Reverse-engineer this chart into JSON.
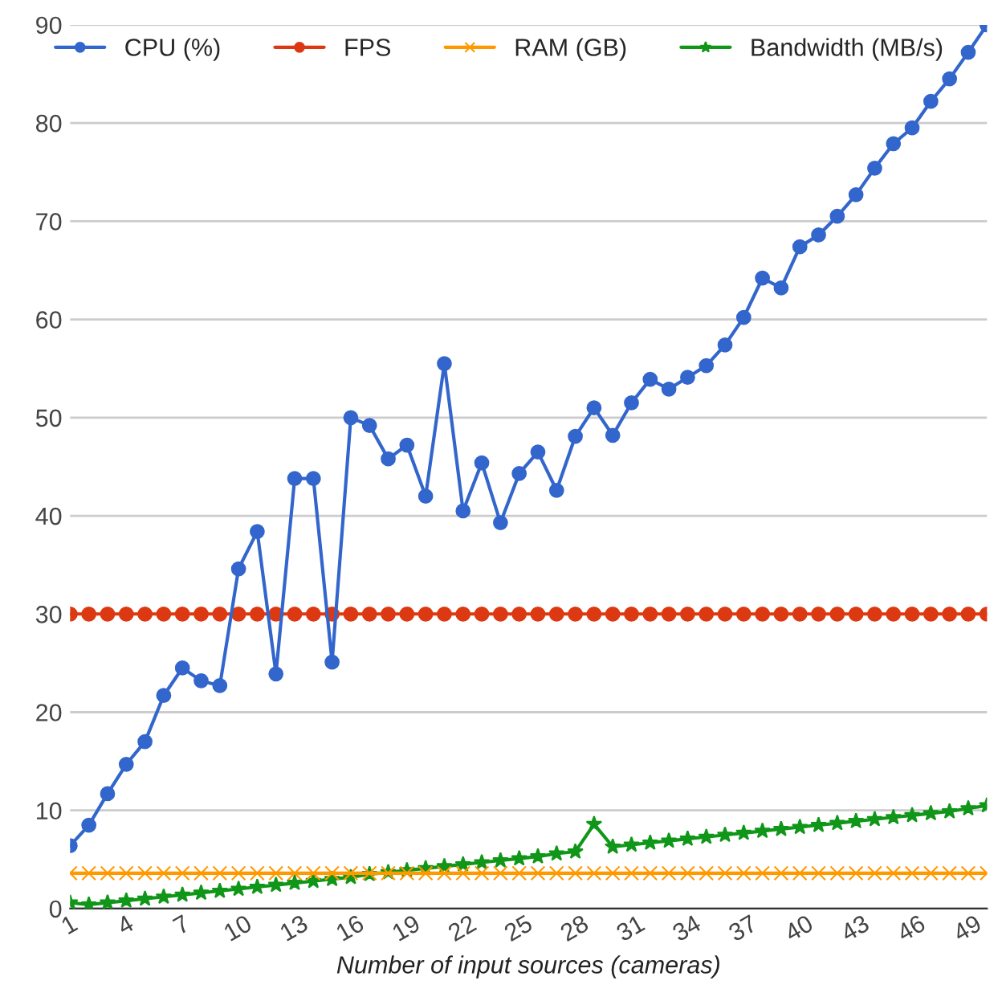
{
  "chart_data": {
    "type": "line",
    "xlabel": "Number of input sources (cameras)",
    "x": [
      1,
      2,
      3,
      4,
      5,
      6,
      7,
      8,
      9,
      10,
      11,
      12,
      13,
      14,
      15,
      16,
      17,
      18,
      19,
      20,
      21,
      22,
      23,
      24,
      25,
      26,
      27,
      28,
      29,
      30,
      31,
      32,
      33,
      34,
      35,
      36,
      37,
      38,
      39,
      40,
      41,
      42,
      43,
      44,
      45,
      46,
      47,
      48,
      49,
      50
    ],
    "series": [
      {
        "name": "CPU (%)",
        "color": "#3366cc",
        "marker": "circle",
        "values": [
          6.4,
          8.5,
          11.7,
          14.7,
          17.0,
          21.7,
          24.5,
          23.2,
          22.7,
          34.6,
          38.4,
          23.9,
          43.8,
          43.8,
          25.1,
          50.0,
          49.2,
          45.8,
          47.2,
          42.0,
          55.5,
          40.5,
          45.4,
          39.3,
          44.3,
          46.5,
          42.6,
          48.1,
          51.0,
          48.2,
          51.5,
          53.9,
          52.9,
          54.1,
          55.3,
          57.4,
          60.2,
          64.2,
          63.2,
          67.4,
          68.6,
          70.5,
          72.7,
          75.4,
          77.9,
          79.5,
          82.2,
          84.5,
          87.2,
          90.0
        ]
      },
      {
        "name": "FPS",
        "color": "#dc3912",
        "marker": "circle",
        "values": [
          30,
          30,
          30,
          30,
          30,
          30,
          30,
          30,
          30,
          30,
          30,
          30,
          30,
          30,
          30,
          30,
          30,
          30,
          30,
          30,
          30,
          30,
          30,
          30,
          30,
          30,
          30,
          30,
          30,
          30,
          30,
          30,
          30,
          30,
          30,
          30,
          30,
          30,
          30,
          30,
          30,
          30,
          30,
          30,
          30,
          30,
          30,
          30,
          30,
          30
        ]
      },
      {
        "name": "RAM (GB)",
        "color": "#ff9900",
        "marker": "cross",
        "values": [
          3.6,
          3.6,
          3.6,
          3.6,
          3.6,
          3.6,
          3.6,
          3.6,
          3.6,
          3.6,
          3.6,
          3.6,
          3.6,
          3.6,
          3.6,
          3.6,
          3.6,
          3.6,
          3.6,
          3.6,
          3.6,
          3.6,
          3.6,
          3.6,
          3.6,
          3.6,
          3.6,
          3.6,
          3.6,
          3.6,
          3.6,
          3.6,
          3.6,
          3.6,
          3.6,
          3.6,
          3.6,
          3.6,
          3.6,
          3.6,
          3.6,
          3.6,
          3.6,
          3.6,
          3.6,
          3.6,
          3.6,
          3.6,
          3.6,
          3.6
        ]
      },
      {
        "name": "Bandwidth (MB/s)",
        "color": "#109618",
        "marker": "star",
        "values": [
          0.6,
          0.4,
          0.6,
          0.8,
          1.0,
          1.2,
          1.4,
          1.6,
          1.8,
          2.0,
          2.2,
          2.4,
          2.6,
          2.8,
          3.0,
          3.2,
          3.5,
          3.7,
          3.9,
          4.1,
          4.3,
          4.5,
          4.7,
          4.9,
          5.1,
          5.3,
          5.6,
          5.8,
          8.6,
          6.3,
          6.5,
          6.7,
          6.9,
          7.1,
          7.3,
          7.5,
          7.7,
          7.9,
          8.1,
          8.3,
          8.5,
          8.7,
          8.9,
          9.1,
          9.3,
          9.5,
          9.7,
          9.9,
          10.2,
          10.5
        ]
      }
    ],
    "xlim": [
      1,
      50
    ],
    "xticks": [
      1,
      4,
      7,
      10,
      13,
      16,
      19,
      22,
      25,
      28,
      31,
      34,
      37,
      40,
      43,
      46,
      49
    ],
    "ylim": [
      0,
      90
    ],
    "yticks": [
      0,
      10,
      20,
      30,
      40,
      50,
      60,
      70,
      80,
      90
    ],
    "grid": "y",
    "legend": "top left",
    "line_style": "solid"
  }
}
